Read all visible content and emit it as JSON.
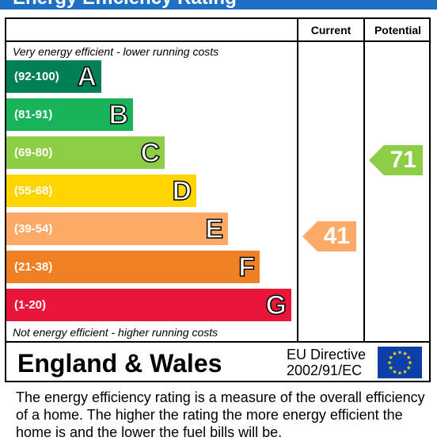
{
  "title": "Energy Efficiency Rating",
  "columns": {
    "current": "Current",
    "potential": "Potential"
  },
  "notes": {
    "top": "Very energy efficient - lower running costs",
    "bottom": "Not energy efficient - higher running costs"
  },
  "bands": [
    {
      "letter": "A",
      "range": "(92-100)",
      "color": "#008054"
    },
    {
      "letter": "B",
      "range": "(81-91)",
      "color": "#19b459"
    },
    {
      "letter": "C",
      "range": "(69-80)",
      "color": "#8dce46"
    },
    {
      "letter": "D",
      "range": "(55-68)",
      "color": "#ffd500"
    },
    {
      "letter": "E",
      "range": "(39-54)",
      "color": "#fcaa65"
    },
    {
      "letter": "F",
      "range": "(21-38)",
      "color": "#ef8023"
    },
    {
      "letter": "G",
      "range": "(1-20)",
      "color": "#e9153b"
    }
  ],
  "chart_data": {
    "type": "bar",
    "categories": [
      "A",
      "B",
      "C",
      "D",
      "E",
      "F",
      "G"
    ],
    "series": [
      {
        "name": "Current",
        "values": [
          null,
          null,
          null,
          null,
          41,
          null,
          null
        ]
      },
      {
        "name": "Potential",
        "values": [
          null,
          null,
          71,
          null,
          null,
          null,
          null
        ]
      }
    ],
    "current": {
      "value": "41",
      "band": "E",
      "color": "#fcaa65"
    },
    "potential": {
      "value": "71",
      "band": "C",
      "color": "#8dce46"
    }
  },
  "footer": {
    "region": "England & Wales",
    "directive_line1": "EU Directive",
    "directive_line2": "2002/91/EC",
    "flag_icon": "eu-flag-icon"
  },
  "description": "The energy efficiency rating is a measure of the overall efficiency of a home.  The higher the rating the more energy efficient the home is and the lower the fuel bills will be."
}
